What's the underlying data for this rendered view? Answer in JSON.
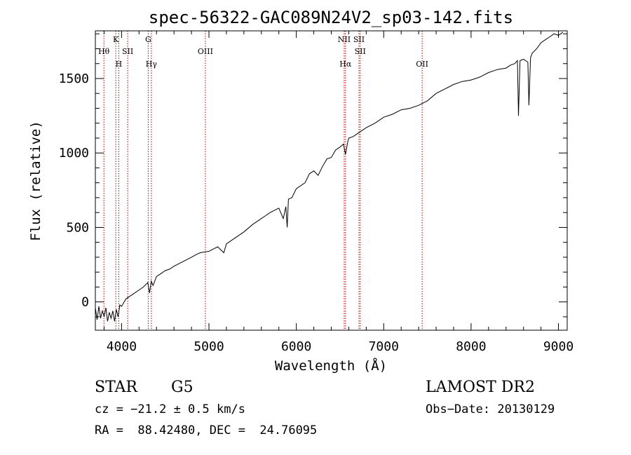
{
  "chart_data": {
    "type": "line",
    "title": "spec-56322-GAC089N24V2_sp03-142.fits",
    "xlabel": "Wavelength (Å)",
    "ylabel": "Flux (relative)",
    "xlim": [
      3700,
      9100
    ],
    "ylim": [
      -190,
      1820
    ],
    "xticks": [
      4000,
      5000,
      6000,
      7000,
      8000,
      9000
    ],
    "yticks": [
      0,
      500,
      1000,
      1500
    ],
    "xtick_labels": [
      "4000",
      "5000",
      "6000",
      "7000",
      "8000",
      "9000"
    ],
    "ytick_labels": [
      "0",
      "500",
      "1000",
      "1500"
    ],
    "line_color": "#000000",
    "marker_color": "#aa0000",
    "series": [
      {
        "x": [
          3700,
          3720,
          3740,
          3760,
          3780,
          3800,
          3820,
          3840,
          3860,
          3880,
          3900,
          3920,
          3940,
          3960,
          3980,
          4000,
          4050,
          4100,
          4150,
          4200,
          4250,
          4300,
          4320,
          4340,
          4360,
          4400,
          4450,
          4500,
          4550,
          4600,
          4700,
          4800,
          4860,
          4900,
          5000,
          5100,
          5170,
          5200,
          5300,
          5400,
          5500,
          5600,
          5700,
          5800,
          5850,
          5880,
          5895,
          5910,
          5950,
          6000,
          6100,
          6150,
          6200,
          6250,
          6300,
          6350,
          6400,
          6450,
          6500,
          6540,
          6563,
          6590,
          6600,
          6650,
          6700,
          6750,
          6800,
          6900,
          7000,
          7100,
          7200,
          7300,
          7400,
          7500,
          7600,
          7700,
          7800,
          7900,
          8000,
          8100,
          8200,
          8300,
          8400,
          8450,
          8500,
          8530,
          8542,
          8560,
          8600,
          8650,
          8662,
          8680,
          8700,
          8750,
          8800,
          8850,
          8900,
          8950,
          9000,
          9050
        ],
        "y": [
          -40,
          -120,
          -30,
          -110,
          -60,
          -100,
          -40,
          -130,
          -70,
          -110,
          -60,
          -130,
          -50,
          -100,
          -20,
          -30,
          20,
          40,
          60,
          80,
          100,
          130,
          60,
          140,
          110,
          170,
          190,
          210,
          220,
          240,
          270,
          300,
          320,
          330,
          340,
          370,
          330,
          390,
          430,
          470,
          520,
          560,
          600,
          630,
          560,
          640,
          500,
          690,
          700,
          760,
          800,
          860,
          880,
          850,
          910,
          960,
          970,
          1020,
          1040,
          1060,
          990,
          1080,
          1100,
          1110,
          1130,
          1150,
          1170,
          1200,
          1240,
          1260,
          1290,
          1300,
          1320,
          1350,
          1400,
          1430,
          1460,
          1480,
          1490,
          1510,
          1540,
          1560,
          1570,
          1590,
          1600,
          1620,
          1250,
          1620,
          1630,
          1610,
          1320,
          1640,
          1670,
          1700,
          1740,
          1760,
          1780,
          1800,
          1790,
          1810
        ]
      }
    ],
    "markers": [
      {
        "x": 3798,
        "label": "Hθ",
        "row": 1
      },
      {
        "x": 3934,
        "label": "K",
        "row": 0
      },
      {
        "x": 3968,
        "label": "H",
        "row": 2
      },
      {
        "x": 4070,
        "label": "SII",
        "row": 1
      },
      {
        "x": 4305,
        "label": "G",
        "row": 0
      },
      {
        "x": 4341,
        "label": "Hγ",
        "row": 2
      },
      {
        "x": 4959,
        "label": "OIII",
        "row": 1
      },
      {
        "x": 6548,
        "label": "NII",
        "row": 0
      },
      {
        "x": 6563,
        "label": "Hα",
        "row": 2
      },
      {
        "x": 6717,
        "label": "SII",
        "row": 0
      },
      {
        "x": 6731,
        "label": "SII",
        "row": 1
      },
      {
        "x": 7440,
        "label": "OII",
        "row": 2
      }
    ]
  },
  "footer": {
    "object_type": "STAR",
    "subclass": "G5",
    "survey": "LAMOST DR2",
    "cz": "cz = −21.2 ± 0.5 km/s",
    "obs_date": "Obs−Date: 20130129",
    "coords": "RA =  88.42480, DEC =  24.76095"
  }
}
